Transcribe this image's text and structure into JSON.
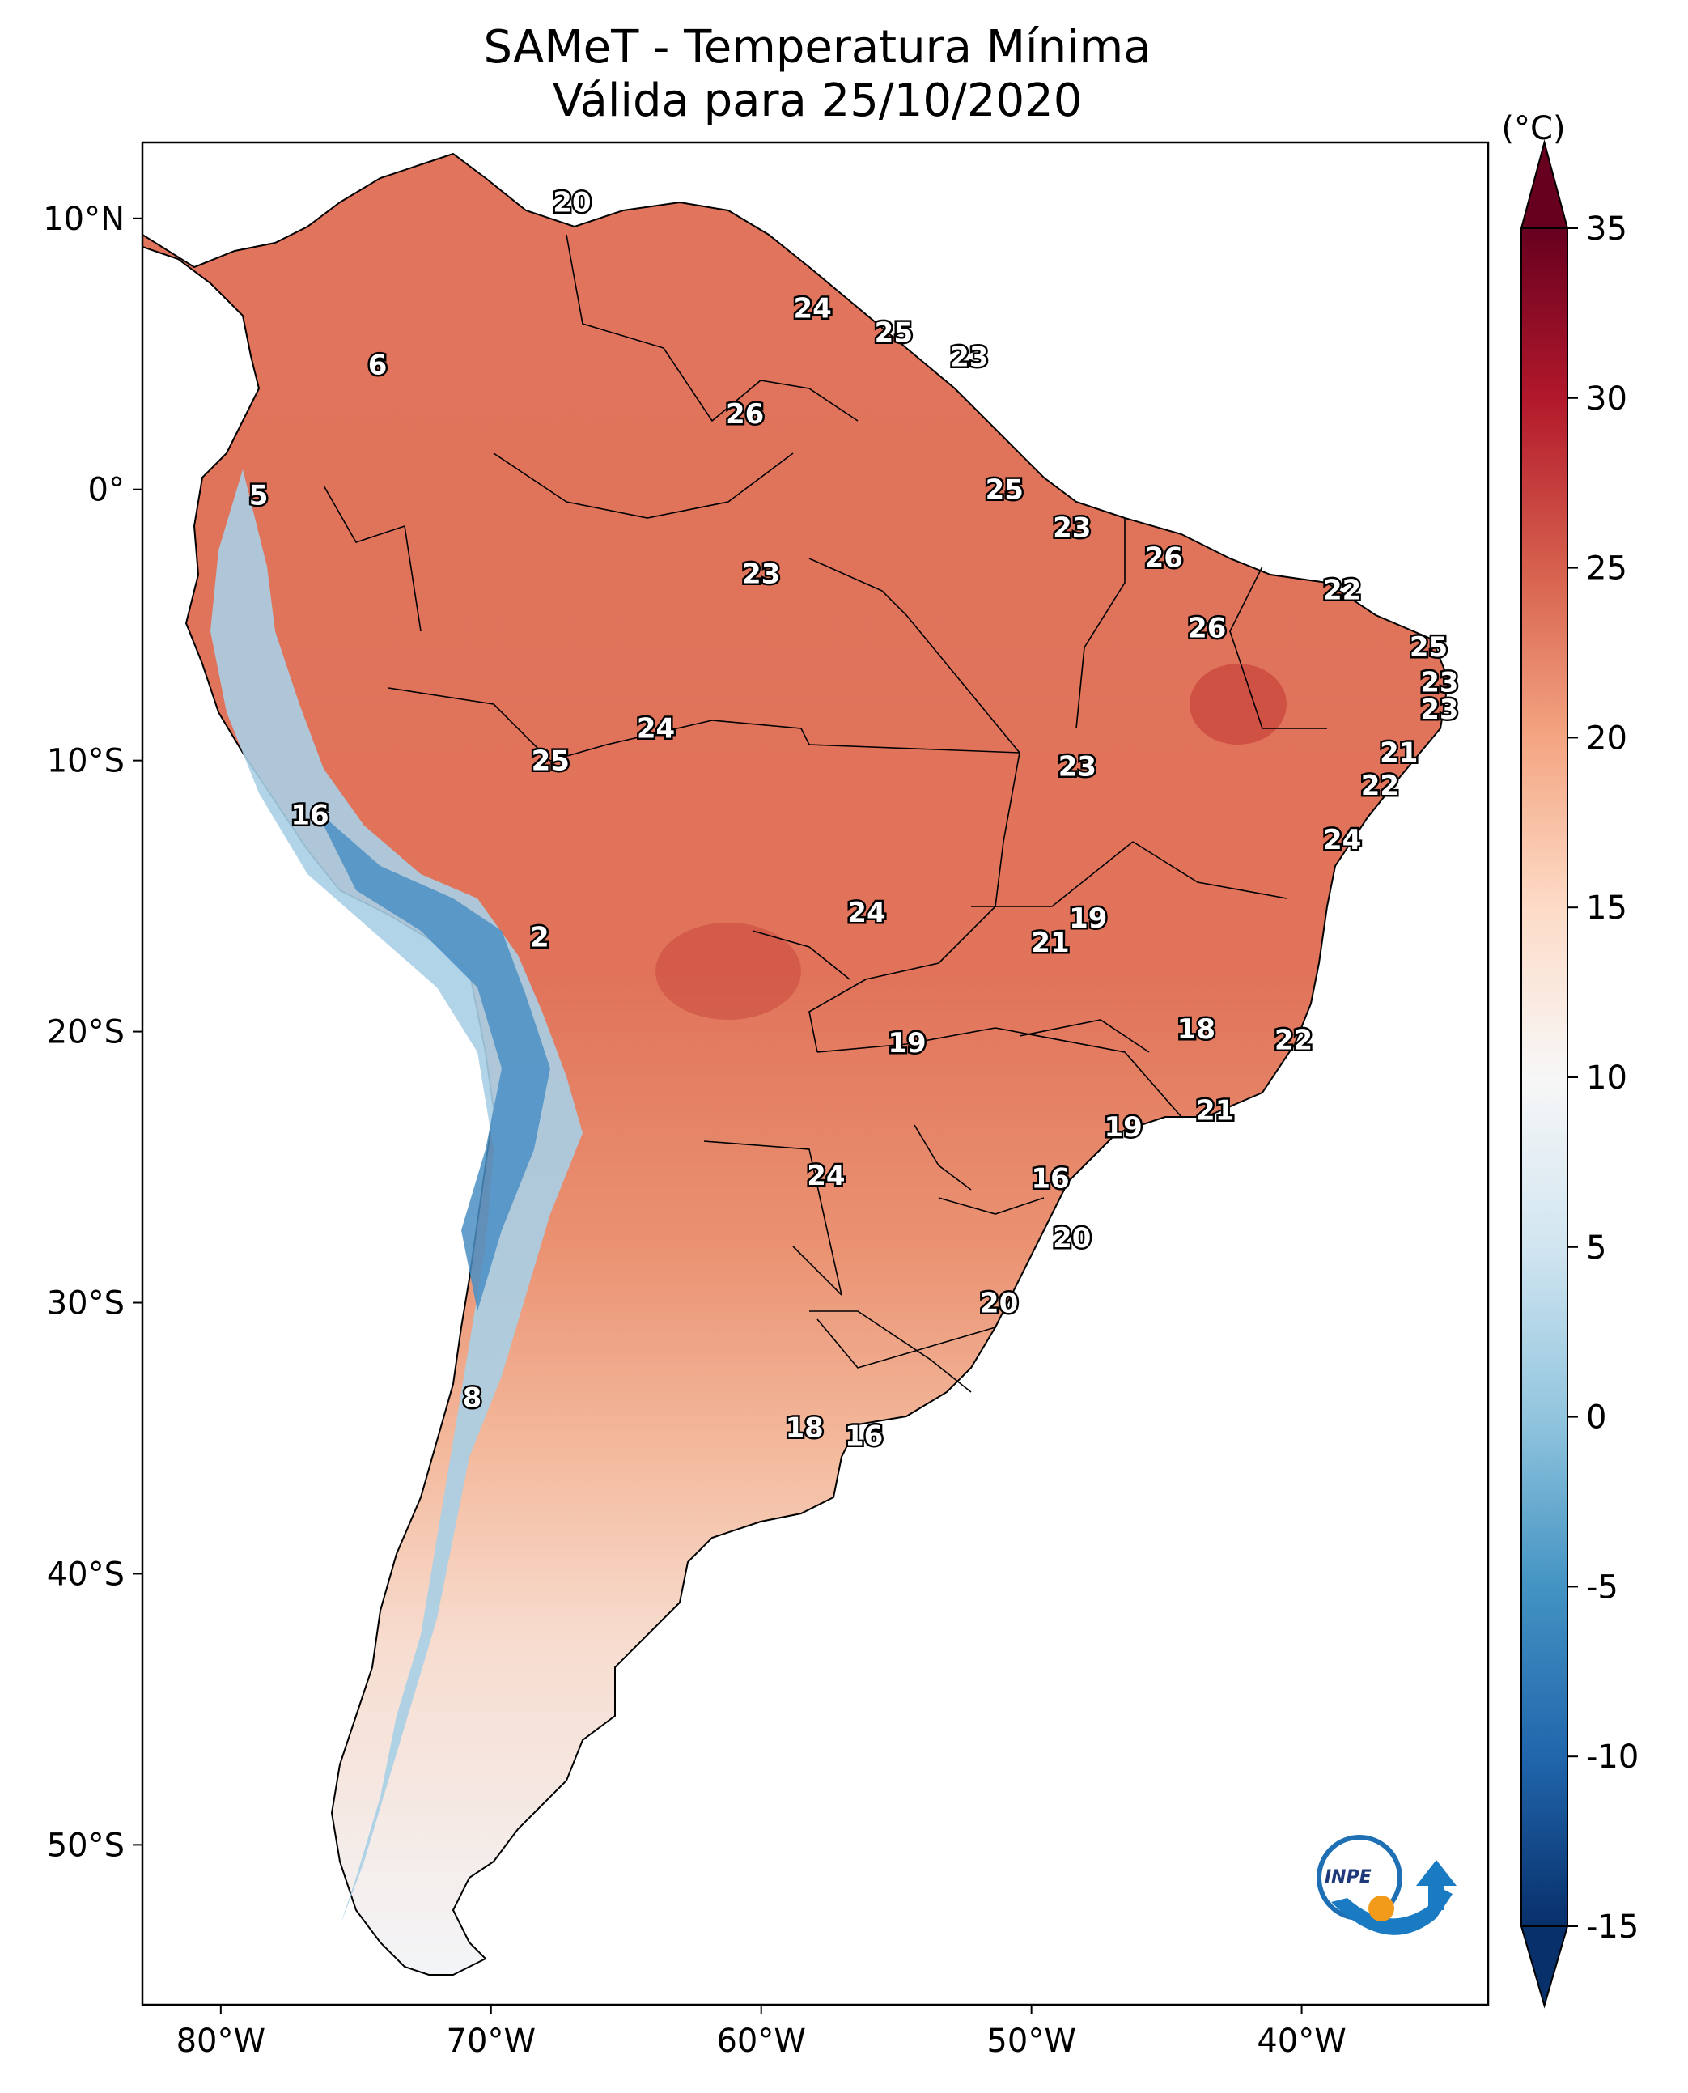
{
  "title": "SAMeT - Temperatura Mínima",
  "subtitle": "Válida para 25/10/2020",
  "colorbar": {
    "unit": "(°C)",
    "ticks": [
      "35",
      "30",
      "25",
      "20",
      "15",
      "10",
      "5",
      "0",
      "-5",
      "-10",
      "-15"
    ],
    "range": [
      -15,
      35
    ],
    "colors": [
      "#08306b",
      "#2166ac",
      "#4393c3",
      "#92c5de",
      "#d1e5f0",
      "#f7f7f7",
      "#fddbc7",
      "#f4a582",
      "#d6604d",
      "#b2182b",
      "#67001f"
    ]
  },
  "axes": {
    "lon_ticks": [
      "80°W",
      "70°W",
      "60°W",
      "50°W",
      "40°W"
    ],
    "lat_ticks": [
      "10°N",
      "0°",
      "10°S",
      "20°S",
      "30°S",
      "40°S",
      "50°S"
    ]
  },
  "values": [
    {
      "v": "20",
      "lon": -67.0,
      "lat": 10.6
    },
    {
      "v": "6",
      "lon": -74.2,
      "lat": 4.6
    },
    {
      "v": "24",
      "lon": -58.1,
      "lat": 6.7
    },
    {
      "v": "25",
      "lon": -55.1,
      "lat": 5.8
    },
    {
      "v": "23",
      "lon": -52.3,
      "lat": 4.9
    },
    {
      "v": "26",
      "lon": -60.6,
      "lat": 2.8
    },
    {
      "v": "5",
      "lon": -78.6,
      "lat": -0.2
    },
    {
      "v": "25",
      "lon": -51.0,
      "lat": 0.0
    },
    {
      "v": "23",
      "lon": -48.5,
      "lat": -1.4
    },
    {
      "v": "26",
      "lon": -45.1,
      "lat": -2.5
    },
    {
      "v": "22",
      "lon": -38.5,
      "lat": -3.7
    },
    {
      "v": "23",
      "lon": -60.0,
      "lat": -3.1
    },
    {
      "v": "26",
      "lon": -43.5,
      "lat": -5.1
    },
    {
      "v": "25",
      "lon": -35.3,
      "lat": -5.8
    },
    {
      "v": "23",
      "lon": -34.9,
      "lat": -7.1
    },
    {
      "v": "23",
      "lon": -34.9,
      "lat": -8.1
    },
    {
      "v": "24",
      "lon": -63.9,
      "lat": -8.8
    },
    {
      "v": "25",
      "lon": -67.8,
      "lat": -10.0
    },
    {
      "v": "23",
      "lon": -48.3,
      "lat": -10.2
    },
    {
      "v": "21",
      "lon": -36.4,
      "lat": -9.7
    },
    {
      "v": "22",
      "lon": -37.1,
      "lat": -10.9
    },
    {
      "v": "16",
      "lon": -76.7,
      "lat": -12.0
    },
    {
      "v": "24",
      "lon": -38.5,
      "lat": -12.9
    },
    {
      "v": "24",
      "lon": -56.1,
      "lat": -15.6
    },
    {
      "v": "19",
      "lon": -47.9,
      "lat": -15.8
    },
    {
      "v": "21",
      "lon": -49.3,
      "lat": -16.7
    },
    {
      "v": "2",
      "lon": -68.2,
      "lat": -16.5
    },
    {
      "v": "19",
      "lon": -54.6,
      "lat": -20.4
    },
    {
      "v": "18",
      "lon": -43.9,
      "lat": -19.9
    },
    {
      "v": "22",
      "lon": -40.3,
      "lat": -20.3
    },
    {
      "v": "21",
      "lon": -43.2,
      "lat": -22.9
    },
    {
      "v": "19",
      "lon": -46.6,
      "lat": -23.5
    },
    {
      "v": "24",
      "lon": -57.6,
      "lat": -25.3
    },
    {
      "v": "16",
      "lon": -49.3,
      "lat": -25.4
    },
    {
      "v": "20",
      "lon": -48.5,
      "lat": -27.6
    },
    {
      "v": "20",
      "lon": -51.2,
      "lat": -30.0
    },
    {
      "v": "8",
      "lon": -70.7,
      "lat": -33.5
    },
    {
      "v": "18",
      "lon": -58.4,
      "lat": -34.6
    },
    {
      "v": "16",
      "lon": -56.2,
      "lat": -34.9
    }
  ],
  "logo": {
    "text": "INPE"
  }
}
